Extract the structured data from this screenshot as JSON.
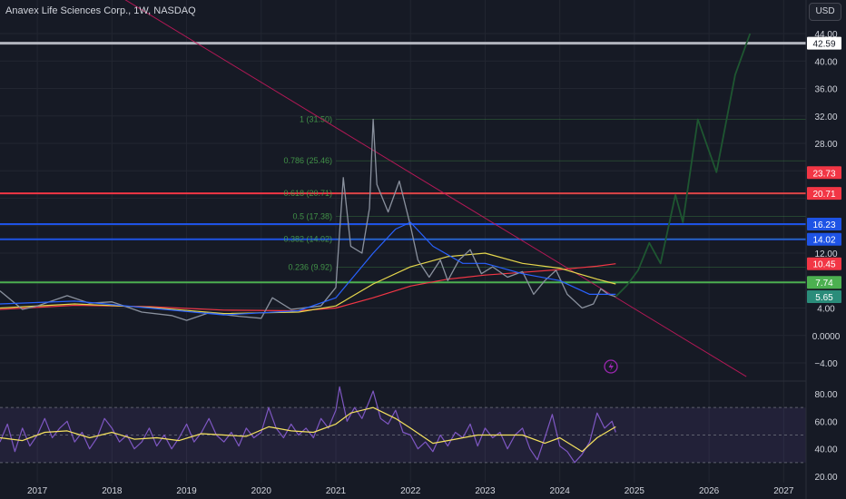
{
  "header": {
    "title": "Anavex Life Sciences Corp., 1W, NASDAQ",
    "currency": "USD"
  },
  "colors": {
    "background": "#161a25",
    "grid": "#222631",
    "axis_text": "#d1d4dc",
    "candle": "#8a919e",
    "ema_blue": "#2962ff",
    "ema_yellow": "#e6d74c",
    "ema_red": "#f23645",
    "trendline": "#c2185b",
    "projection": "#1e5631",
    "rsi_line": "#7e57c2",
    "rsi_signal": "#f5e25e",
    "fib": "#4caf50"
  },
  "chart_data": [
    {
      "type": "line",
      "pane": "price",
      "price_axis_ticks": [
        44,
        40,
        36,
        32,
        28,
        24,
        20,
        16,
        12,
        8,
        4,
        0,
        -4
      ],
      "price_axis_labels": [
        "44.00",
        "40.00",
        "36.00",
        "32.00",
        "28.00",
        "",
        "",
        "",
        "12.00",
        "",
        "4.00",
        "0.0000",
        "−4.00"
      ],
      "time_axis_labels": [
        "2017",
        "2018",
        "2019",
        "2020",
        "2021",
        "2022",
        "2023",
        "2024",
        "2025",
        "2026",
        "2027"
      ],
      "horizontal_levels": [
        {
          "value": 42.59,
          "label": "42.59",
          "color": "#b2b5be"
        },
        {
          "value": 20.71,
          "label": "20.71",
          "color": "#f23645"
        },
        {
          "value": 16.23,
          "label": "16.23",
          "color": "#1e53e5"
        },
        {
          "value": 14.02,
          "label": "14.02",
          "color": "#1e53e5"
        },
        {
          "value": 7.74,
          "label": "7.74",
          "color": "#4caf50"
        }
      ],
      "price_tags": [
        {
          "value": 23.73,
          "label": "23.73",
          "color": "#f23645"
        },
        {
          "value": 10.45,
          "label": "10.45",
          "color": "#f23645"
        },
        {
          "value": 5.65,
          "label": "5.65",
          "color": "#2a8c7a"
        }
      ],
      "fib_levels": [
        {
          "label": "1 (31.50)",
          "value": 31.5
        },
        {
          "label": "0.786 (25.46)",
          "value": 25.46
        },
        {
          "label": "0.618 (20.71)",
          "value": 20.71
        },
        {
          "label": "0.5 (17.38)",
          "value": 17.38
        },
        {
          "label": "0.382 (14.02)",
          "value": 14.02
        },
        {
          "label": "0.236 (9.92)",
          "value": 9.92
        }
      ],
      "close": [
        {
          "x": 2016.5,
          "y": 6.5
        },
        {
          "x": 2016.8,
          "y": 3.8
        },
        {
          "x": 2017.0,
          "y": 4.3
        },
        {
          "x": 2017.4,
          "y": 5.8
        },
        {
          "x": 2017.7,
          "y": 4.7
        },
        {
          "x": 2018.0,
          "y": 4.9
        },
        {
          "x": 2018.4,
          "y": 3.4
        },
        {
          "x": 2018.8,
          "y": 2.9
        },
        {
          "x": 2019.0,
          "y": 2.2
        },
        {
          "x": 2019.3,
          "y": 3.3
        },
        {
          "x": 2019.7,
          "y": 2.8
        },
        {
          "x": 2020.0,
          "y": 2.5
        },
        {
          "x": 2020.15,
          "y": 5.5
        },
        {
          "x": 2020.4,
          "y": 3.8
        },
        {
          "x": 2020.8,
          "y": 4.3
        },
        {
          "x": 2021.0,
          "y": 7.0
        },
        {
          "x": 2021.1,
          "y": 23.0
        },
        {
          "x": 2021.2,
          "y": 13.0
        },
        {
          "x": 2021.35,
          "y": 12.0
        },
        {
          "x": 2021.45,
          "y": 18.5
        },
        {
          "x": 2021.5,
          "y": 31.5
        },
        {
          "x": 2021.55,
          "y": 22.0
        },
        {
          "x": 2021.7,
          "y": 18.0
        },
        {
          "x": 2021.85,
          "y": 22.5
        },
        {
          "x": 2022.0,
          "y": 16.0
        },
        {
          "x": 2022.1,
          "y": 11.0
        },
        {
          "x": 2022.25,
          "y": 8.5
        },
        {
          "x": 2022.4,
          "y": 11.0
        },
        {
          "x": 2022.5,
          "y": 8.0
        },
        {
          "x": 2022.65,
          "y": 11.0
        },
        {
          "x": 2022.8,
          "y": 12.5
        },
        {
          "x": 2022.95,
          "y": 9.0
        },
        {
          "x": 2023.1,
          "y": 10.0
        },
        {
          "x": 2023.3,
          "y": 8.5
        },
        {
          "x": 2023.5,
          "y": 9.3
        },
        {
          "x": 2023.65,
          "y": 6.0
        },
        {
          "x": 2023.8,
          "y": 8.0
        },
        {
          "x": 2023.95,
          "y": 9.5
        },
        {
          "x": 2024.1,
          "y": 6.0
        },
        {
          "x": 2024.3,
          "y": 4.0
        },
        {
          "x": 2024.45,
          "y": 4.6
        },
        {
          "x": 2024.55,
          "y": 6.8
        },
        {
          "x": 2024.65,
          "y": 6.0
        },
        {
          "x": 2024.75,
          "y": 5.65
        }
      ],
      "ema_blue": [
        {
          "x": 2016.5,
          "y": 4.6
        },
        {
          "x": 2017.5,
          "y": 5.0
        },
        {
          "x": 2018.5,
          "y": 4.0
        },
        {
          "x": 2019.5,
          "y": 3.0
        },
        {
          "x": 2020.5,
          "y": 3.6
        },
        {
          "x": 2021.0,
          "y": 5.5
        },
        {
          "x": 2021.5,
          "y": 12.0
        },
        {
          "x": 2021.8,
          "y": 15.5
        },
        {
          "x": 2022.0,
          "y": 16.5
        },
        {
          "x": 2022.3,
          "y": 13.0
        },
        {
          "x": 2022.7,
          "y": 10.5
        },
        {
          "x": 2023.0,
          "y": 10.5
        },
        {
          "x": 2023.5,
          "y": 9.0
        },
        {
          "x": 2024.0,
          "y": 8.0
        },
        {
          "x": 2024.4,
          "y": 6.0
        },
        {
          "x": 2024.75,
          "y": 6.0
        }
      ],
      "ema_yellow": [
        {
          "x": 2016.5,
          "y": 4.0
        },
        {
          "x": 2017.5,
          "y": 4.6
        },
        {
          "x": 2018.5,
          "y": 4.1
        },
        {
          "x": 2019.5,
          "y": 3.2
        },
        {
          "x": 2020.5,
          "y": 3.4
        },
        {
          "x": 2021.0,
          "y": 4.3
        },
        {
          "x": 2021.5,
          "y": 7.5
        },
        {
          "x": 2022.0,
          "y": 10.0
        },
        {
          "x": 2022.5,
          "y": 11.5
        },
        {
          "x": 2023.0,
          "y": 12.0
        },
        {
          "x": 2023.5,
          "y": 10.5
        },
        {
          "x": 2024.0,
          "y": 9.8
        },
        {
          "x": 2024.5,
          "y": 8.2
        },
        {
          "x": 2024.75,
          "y": 7.5
        }
      ],
      "ema_red": [
        {
          "x": 2016.5,
          "y": 3.8
        },
        {
          "x": 2017.5,
          "y": 4.4
        },
        {
          "x": 2018.5,
          "y": 4.2
        },
        {
          "x": 2019.5,
          "y": 3.7
        },
        {
          "x": 2020.5,
          "y": 3.6
        },
        {
          "x": 2021.0,
          "y": 4.0
        },
        {
          "x": 2021.5,
          "y": 5.5
        },
        {
          "x": 2022.0,
          "y": 7.2
        },
        {
          "x": 2022.5,
          "y": 8.2
        },
        {
          "x": 2023.0,
          "y": 8.8
        },
        {
          "x": 2023.5,
          "y": 9.2
        },
        {
          "x": 2024.0,
          "y": 9.6
        },
        {
          "x": 2024.5,
          "y": 10.1
        },
        {
          "x": 2024.75,
          "y": 10.45
        }
      ],
      "trendline": [
        {
          "x": 2016.5,
          "y": 60.0
        },
        {
          "x": 2026.5,
          "y": -6.0
        }
      ],
      "projection": [
        {
          "x": 2024.75,
          "y": 5.65
        },
        {
          "x": 2024.9,
          "y": 7.3
        },
        {
          "x": 2025.05,
          "y": 9.5
        },
        {
          "x": 2025.2,
          "y": 13.5
        },
        {
          "x": 2025.35,
          "y": 10.5
        },
        {
          "x": 2025.55,
          "y": 20.5
        },
        {
          "x": 2025.65,
          "y": 16.5
        },
        {
          "x": 2025.85,
          "y": 31.5
        },
        {
          "x": 2026.1,
          "y": 23.8
        },
        {
          "x": 2026.35,
          "y": 38.0
        },
        {
          "x": 2026.55,
          "y": 44.0
        }
      ]
    },
    {
      "type": "line",
      "pane": "rsi",
      "rsi_axis_ticks": [
        80,
        60,
        40,
        20
      ],
      "rsi_axis_labels": [
        "80.00",
        "60.00",
        "40.00",
        "20.00"
      ],
      "bands": [
        70,
        50,
        30
      ],
      "rsi": [
        {
          "x": 2016.5,
          "y": 45
        },
        {
          "x": 2016.6,
          "y": 58
        },
        {
          "x": 2016.7,
          "y": 38
        },
        {
          "x": 2016.8,
          "y": 55
        },
        {
          "x": 2016.9,
          "y": 42
        },
        {
          "x": 2017.0,
          "y": 50
        },
        {
          "x": 2017.1,
          "y": 62
        },
        {
          "x": 2017.2,
          "y": 48
        },
        {
          "x": 2017.3,
          "y": 55
        },
        {
          "x": 2017.4,
          "y": 60
        },
        {
          "x": 2017.5,
          "y": 45
        },
        {
          "x": 2017.6,
          "y": 52
        },
        {
          "x": 2017.7,
          "y": 40
        },
        {
          "x": 2017.8,
          "y": 48
        },
        {
          "x": 2017.9,
          "y": 62
        },
        {
          "x": 2018.0,
          "y": 55
        },
        {
          "x": 2018.1,
          "y": 45
        },
        {
          "x": 2018.2,
          "y": 50
        },
        {
          "x": 2018.3,
          "y": 40
        },
        {
          "x": 2018.4,
          "y": 45
        },
        {
          "x": 2018.5,
          "y": 55
        },
        {
          "x": 2018.6,
          "y": 42
        },
        {
          "x": 2018.7,
          "y": 50
        },
        {
          "x": 2018.8,
          "y": 40
        },
        {
          "x": 2018.9,
          "y": 48
        },
        {
          "x": 2019.0,
          "y": 58
        },
        {
          "x": 2019.1,
          "y": 45
        },
        {
          "x": 2019.2,
          "y": 52
        },
        {
          "x": 2019.3,
          "y": 62
        },
        {
          "x": 2019.4,
          "y": 50
        },
        {
          "x": 2019.5,
          "y": 45
        },
        {
          "x": 2019.6,
          "y": 52
        },
        {
          "x": 2019.7,
          "y": 42
        },
        {
          "x": 2019.8,
          "y": 55
        },
        {
          "x": 2019.9,
          "y": 48
        },
        {
          "x": 2020.0,
          "y": 52
        },
        {
          "x": 2020.1,
          "y": 70
        },
        {
          "x": 2020.2,
          "y": 55
        },
        {
          "x": 2020.3,
          "y": 48
        },
        {
          "x": 2020.4,
          "y": 58
        },
        {
          "x": 2020.5,
          "y": 50
        },
        {
          "x": 2020.6,
          "y": 55
        },
        {
          "x": 2020.7,
          "y": 48
        },
        {
          "x": 2020.8,
          "y": 62
        },
        {
          "x": 2020.9,
          "y": 55
        },
        {
          "x": 2021.0,
          "y": 68
        },
        {
          "x": 2021.05,
          "y": 85
        },
        {
          "x": 2021.15,
          "y": 60
        },
        {
          "x": 2021.25,
          "y": 70
        },
        {
          "x": 2021.35,
          "y": 62
        },
        {
          "x": 2021.45,
          "y": 75
        },
        {
          "x": 2021.5,
          "y": 82
        },
        {
          "x": 2021.6,
          "y": 62
        },
        {
          "x": 2021.7,
          "y": 58
        },
        {
          "x": 2021.8,
          "y": 68
        },
        {
          "x": 2021.9,
          "y": 52
        },
        {
          "x": 2022.0,
          "y": 50
        },
        {
          "x": 2022.1,
          "y": 40
        },
        {
          "x": 2022.2,
          "y": 45
        },
        {
          "x": 2022.3,
          "y": 38
        },
        {
          "x": 2022.4,
          "y": 50
        },
        {
          "x": 2022.5,
          "y": 42
        },
        {
          "x": 2022.6,
          "y": 52
        },
        {
          "x": 2022.7,
          "y": 48
        },
        {
          "x": 2022.8,
          "y": 58
        },
        {
          "x": 2022.9,
          "y": 42
        },
        {
          "x": 2023.0,
          "y": 55
        },
        {
          "x": 2023.1,
          "y": 48
        },
        {
          "x": 2023.2,
          "y": 52
        },
        {
          "x": 2023.3,
          "y": 40
        },
        {
          "x": 2023.4,
          "y": 50
        },
        {
          "x": 2023.5,
          "y": 55
        },
        {
          "x": 2023.6,
          "y": 40
        },
        {
          "x": 2023.7,
          "y": 32
        },
        {
          "x": 2023.8,
          "y": 48
        },
        {
          "x": 2023.9,
          "y": 65
        },
        {
          "x": 2024.0,
          "y": 42
        },
        {
          "x": 2024.1,
          "y": 38
        },
        {
          "x": 2024.2,
          "y": 30
        },
        {
          "x": 2024.3,
          "y": 36
        },
        {
          "x": 2024.4,
          "y": 45
        },
        {
          "x": 2024.5,
          "y": 66
        },
        {
          "x": 2024.6,
          "y": 55
        },
        {
          "x": 2024.7,
          "y": 60
        },
        {
          "x": 2024.75,
          "y": 52
        }
      ],
      "rsi_signal": [
        {
          "x": 2016.5,
          "y": 48
        },
        {
          "x": 2016.8,
          "y": 46
        },
        {
          "x": 2017.1,
          "y": 52
        },
        {
          "x": 2017.4,
          "y": 53
        },
        {
          "x": 2017.7,
          "y": 48
        },
        {
          "x": 2018.0,
          "y": 52
        },
        {
          "x": 2018.3,
          "y": 47
        },
        {
          "x": 2018.6,
          "y": 48
        },
        {
          "x": 2018.9,
          "y": 46
        },
        {
          "x": 2019.2,
          "y": 51
        },
        {
          "x": 2019.5,
          "y": 50
        },
        {
          "x": 2019.8,
          "y": 49
        },
        {
          "x": 2020.1,
          "y": 56
        },
        {
          "x": 2020.4,
          "y": 53
        },
        {
          "x": 2020.7,
          "y": 52
        },
        {
          "x": 2021.0,
          "y": 58
        },
        {
          "x": 2021.2,
          "y": 66
        },
        {
          "x": 2021.5,
          "y": 70
        },
        {
          "x": 2021.8,
          "y": 62
        },
        {
          "x": 2022.0,
          "y": 55
        },
        {
          "x": 2022.3,
          "y": 44
        },
        {
          "x": 2022.6,
          "y": 47
        },
        {
          "x": 2022.9,
          "y": 50
        },
        {
          "x": 2023.2,
          "y": 50
        },
        {
          "x": 2023.5,
          "y": 50
        },
        {
          "x": 2023.8,
          "y": 44
        },
        {
          "x": 2024.0,
          "y": 48
        },
        {
          "x": 2024.3,
          "y": 38
        },
        {
          "x": 2024.5,
          "y": 48
        },
        {
          "x": 2024.75,
          "y": 56
        }
      ]
    }
  ]
}
